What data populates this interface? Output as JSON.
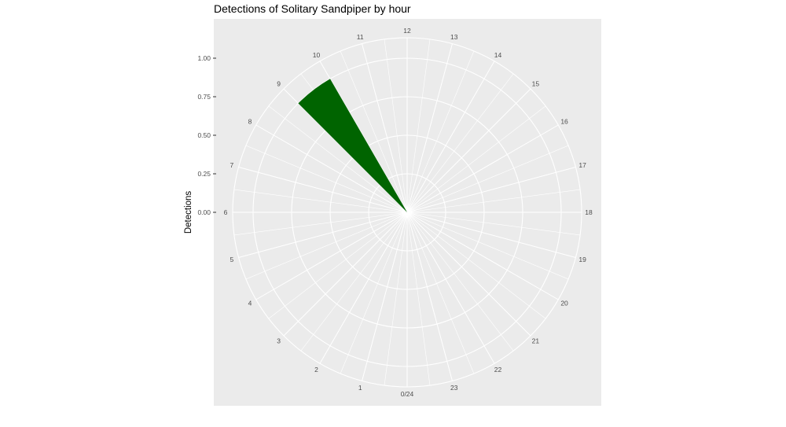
{
  "chart_data": {
    "type": "bar",
    "polar": true,
    "title": "Detections of Solitary Sandpiper by hour",
    "ylabel": "Detections",
    "xlabel": "",
    "ylim": [
      0,
      1
    ],
    "y_ticks": [
      "0.00",
      "0.25",
      "0.50",
      "0.75",
      "1.00"
    ],
    "hour_labels": [
      "0/24",
      "1",
      "2",
      "3",
      "4",
      "5",
      "6",
      "7",
      "8",
      "9",
      "10",
      "11",
      "12",
      "13",
      "14",
      "15",
      "16",
      "17",
      "18",
      "19",
      "20",
      "21",
      "22",
      "23"
    ],
    "bar_color": "#006400",
    "panel_color": "#ebebeb",
    "grid_color": "#ffffff",
    "series": [
      {
        "x": [
          9.5
        ],
        "values": [
          1.0
        ]
      }
    ]
  }
}
